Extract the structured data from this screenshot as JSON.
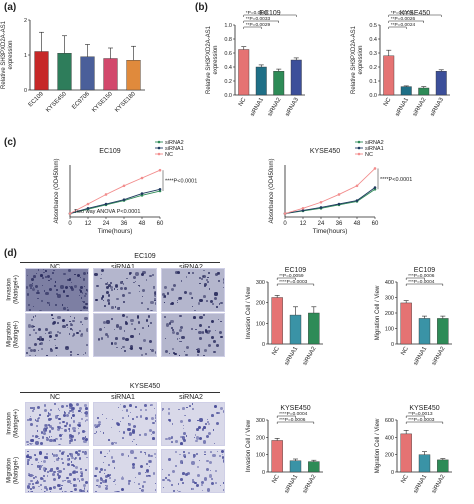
{
  "panels": {
    "a": "(a)",
    "b": "(b)",
    "c": "(c)",
    "d": "(d)"
  },
  "colors": {
    "bar_a": [
      "#c62828",
      "#2e7d5b",
      "#4a5f9a",
      "#d2486c",
      "#e08a3c"
    ],
    "bar_three": [
      "#e57373",
      "#1f6f86",
      "#2e8b57",
      "#3c4f9a"
    ],
    "bar_d": [
      "#e57373",
      "#3a93a6",
      "#2e8b57"
    ],
    "line_sirna2": "#2e8b57",
    "line_sirna1": "#1f3a5f",
    "line_nc": "#f28c8c"
  },
  "chart_data": [
    {
      "id": "a",
      "type": "bar",
      "ylabel": "Relative SH3PXD2A-AS1\nexpression",
      "categories": [
        "EC109",
        "KYSE450",
        "EC9706",
        "KYSE150",
        "KYSE180"
      ],
      "values": [
        1.1,
        1.05,
        0.95,
        0.9,
        0.85
      ],
      "errors": [
        0.55,
        0.5,
        0.35,
        0.3,
        0.4
      ],
      "ylim": [
        0,
        2
      ],
      "yticks": [
        "0",
        "1",
        "2"
      ]
    },
    {
      "id": "b1",
      "type": "bar",
      "title": "EC109",
      "ylabel": "Relative SH3PXD2A-AS1\nexpression",
      "categories": [
        "NC",
        "siRNA1",
        "siRNA2",
        "siRNA3"
      ],
      "values": [
        0.65,
        0.4,
        0.34,
        0.5
      ],
      "errors": [
        0.04,
        0.03,
        0.03,
        0.03
      ],
      "ylim": [
        0,
        1.0
      ],
      "yticks": [
        "0.0",
        "0.2",
        "0.4",
        "0.6",
        "0.8",
        "1.0"
      ],
      "annotations": [
        "*P=0.0109",
        "**P=0.0033",
        "**P=0.0029"
      ]
    },
    {
      "id": "b2",
      "type": "bar",
      "title": "KYSE450",
      "ylabel": "Relative SH3PXD2A-AS1\nexpression",
      "categories": [
        "NC",
        "siRNA1",
        "siRNA2",
        "siRNA3"
      ],
      "values": [
        0.28,
        0.06,
        0.05,
        0.17
      ],
      "errors": [
        0.04,
        0.005,
        0.01,
        0.01
      ],
      "ylim": [
        0,
        0.5
      ],
      "yticks": [
        "0.0",
        "0.1",
        "0.2",
        "0.3",
        "0.4",
        "0.5"
      ],
      "annotations": [
        "*P=0.0336",
        "**P=0.0026",
        "**P=0.0024"
      ]
    },
    {
      "id": "c1",
      "type": "line",
      "title": "EC109",
      "ylabel": "Absorbance (OD450nm)",
      "xlabel": "Time(hours)",
      "x": [
        0,
        12,
        24,
        36,
        48,
        60
      ],
      "xlim": [
        0,
        60
      ],
      "ylim": [
        0,
        3.0
      ],
      "series": [
        {
          "name": "siRNA2",
          "values": [
            0.2,
            0.45,
            0.7,
            0.95,
            1.25,
            1.5
          ]
        },
        {
          "name": "siRNA1",
          "values": [
            0.2,
            0.5,
            0.75,
            1.0,
            1.35,
            1.6
          ]
        },
        {
          "name": "NC",
          "values": [
            0.2,
            0.75,
            1.3,
            1.8,
            2.25,
            2.7
          ]
        }
      ],
      "annotations": [
        "****P<0.0001",
        "Two way ANOVA P<0.0001"
      ]
    },
    {
      "id": "c2",
      "type": "line",
      "title": "KYSE450",
      "ylabel": "Absorbance (OD450nm)",
      "xlabel": "Time(hours)",
      "x": [
        0,
        12,
        24,
        36,
        48,
        60
      ],
      "xlim": [
        0,
        60
      ],
      "ylim": [
        0,
        3.0
      ],
      "series": [
        {
          "name": "siRNA2",
          "values": [
            0.2,
            0.35,
            0.5,
            0.7,
            0.9,
            1.6
          ]
        },
        {
          "name": "siRNA1",
          "values": [
            0.2,
            0.38,
            0.55,
            0.75,
            0.95,
            1.7
          ]
        },
        {
          "name": "NC",
          "values": [
            0.2,
            0.5,
            0.85,
            1.3,
            1.8,
            2.8
          ]
        }
      ],
      "annotations": [
        "****P<0.0001"
      ]
    },
    {
      "id": "d1",
      "type": "bar",
      "title": "EC109",
      "ylabel": "Invasion Cell / View",
      "categories": [
        "NC",
        "siRNA1",
        "siRNA2"
      ],
      "values": [
        225,
        140,
        150
      ],
      "errors": [
        10,
        40,
        30
      ],
      "ylim": [
        0,
        300
      ],
      "yticks": [
        "0",
        "100",
        "200",
        "300"
      ],
      "annotations": [
        "**P=0.0059",
        "****P=0.0003"
      ]
    },
    {
      "id": "d2",
      "type": "bar",
      "title": "EC109",
      "ylabel": "Migration Cell / View",
      "categories": [
        "NC",
        "siRNA1",
        "siRNA2"
      ],
      "values": [
        265,
        165,
        165
      ],
      "errors": [
        15,
        15,
        15
      ],
      "ylim": [
        0,
        400
      ],
      "yticks": [
        "0",
        "100",
        "200",
        "300",
        "400"
      ],
      "annotations": [
        "***P=0.0006",
        "***P=0.0004"
      ]
    },
    {
      "id": "d3",
      "type": "bar",
      "title": "KYSE450",
      "ylabel": "Invasion Cell / View",
      "categories": [
        "NC",
        "siRNA1",
        "siRNA2"
      ],
      "values": [
        182,
        65,
        60
      ],
      "errors": [
        12,
        10,
        8
      ],
      "ylim": [
        0,
        300
      ],
      "yticks": [
        "0",
        "100",
        "200",
        "300"
      ],
      "annotations": [
        "****P=0.0004",
        "***P=0.0006"
      ]
    },
    {
      "id": "d4",
      "type": "bar",
      "title": "KYSE450",
      "ylabel": "Migration Cell / View",
      "categories": [
        "NC",
        "siRNA1",
        "siRNA2"
      ],
      "values": [
        440,
        200,
        140
      ],
      "errors": [
        40,
        35,
        15
      ],
      "ylim": [
        0,
        600
      ],
      "yticks": [
        "0",
        "200",
        "400",
        "600"
      ],
      "annotations": [
        "**P=0.0013",
        "***P=0.0003"
      ]
    }
  ],
  "micrographs": {
    "ec109_title": "EC109",
    "kyse450_title": "KYSE450",
    "columns": [
      "NC",
      "siRNA1",
      "siRNA2"
    ],
    "rows": [
      "Invasion\n(Matrigel+)",
      "Migration\n(Matrigel-)"
    ]
  }
}
